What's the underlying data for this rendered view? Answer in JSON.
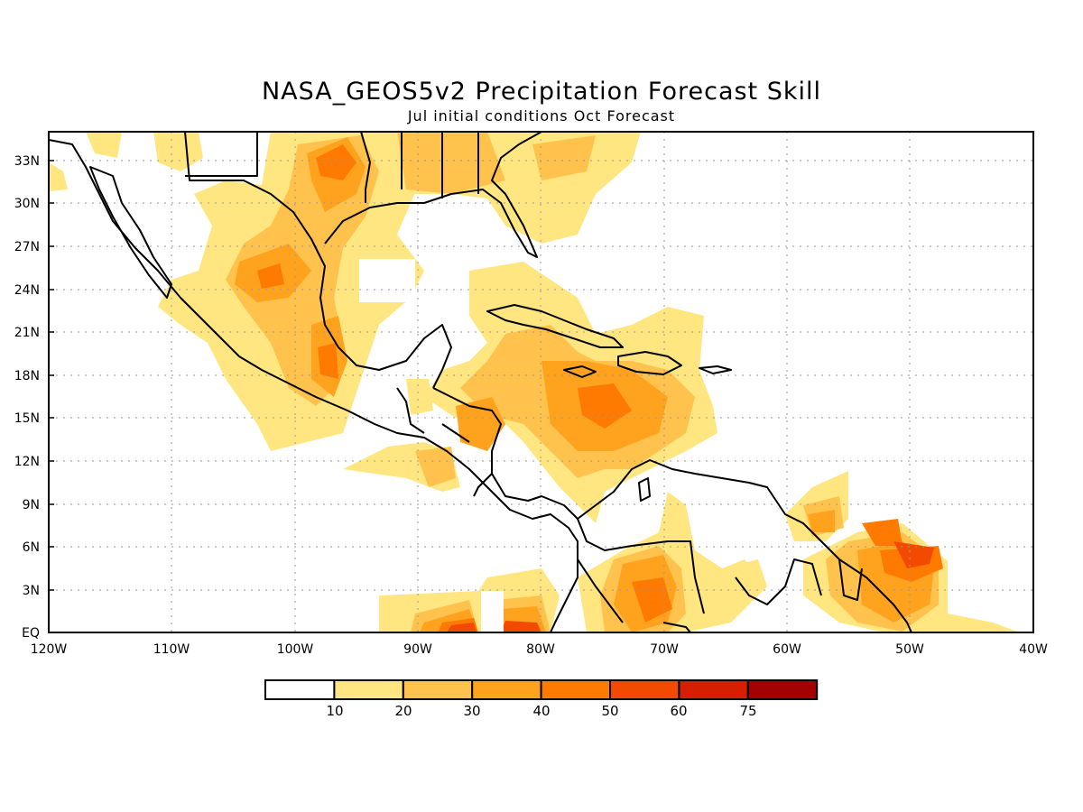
{
  "header": {
    "title": "NASA_GEOS5v2 Precipitation Forecast Skill",
    "subtitle": "Jul initial conditions  Oct Forecast"
  },
  "map": {
    "region": "Central America and Caribbean",
    "lon_range": [
      -120,
      -40
    ],
    "lat_range": [
      0,
      35
    ],
    "lon_ticks": [
      "120W",
      "110W",
      "100W",
      "90W",
      "80W",
      "70W",
      "60W",
      "50W",
      "40W"
    ],
    "lat_ticks": [
      "EQ",
      "3N",
      "6N",
      "9N",
      "12N",
      "15N",
      "18N",
      "21N",
      "24N",
      "27N",
      "30N",
      "33N"
    ],
    "gridlines": "dotted"
  },
  "legend": {
    "labels": [
      "10",
      "20",
      "30",
      "40",
      "50",
      "60",
      "75"
    ],
    "colors": [
      "#ffffff",
      "#ffe680",
      "#ffc24d",
      "#ffa31f",
      "#ff7a00",
      "#f24a00",
      "#d61f00",
      "#a30000"
    ]
  },
  "colors": {
    "coastline": "#000000",
    "frame": "#000000",
    "grid": "#9a9a9a"
  }
}
